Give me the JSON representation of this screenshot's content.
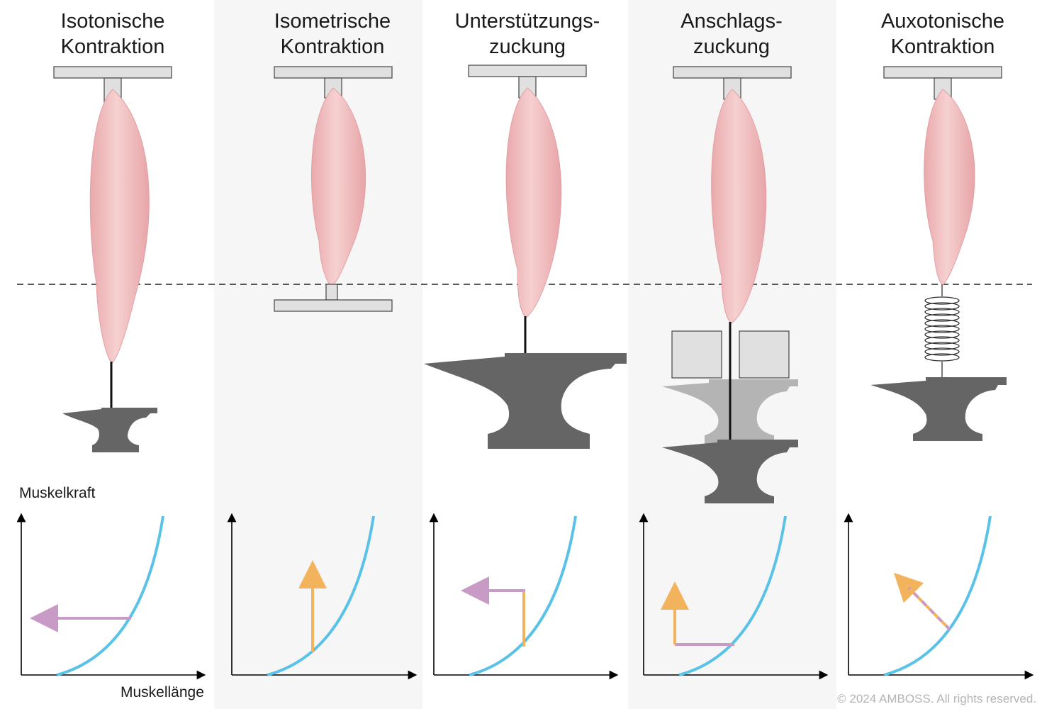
{
  "panels": [
    {
      "id": "isotonic",
      "title_line1": "Isotonische",
      "title_line2": "Kontraktion"
    },
    {
      "id": "isometric",
      "title_line1": "Isometrische",
      "title_line2": "Kontraktion"
    },
    {
      "id": "support",
      "title_line1": "Unterstützungs-",
      "title_line2": "zuckung"
    },
    {
      "id": "afterload",
      "title_line1": "Anschlags-",
      "title_line2": "zuckung"
    },
    {
      "id": "auxotonic",
      "title_line1": "Auxotonische",
      "title_line2": "Kontraktion"
    }
  ],
  "axis": {
    "y_label": "Muskelkraft",
    "x_label": "Muskellänge"
  },
  "copyright": "© 2024 AMBOSS. All rights reserved.",
  "colors": {
    "muscle": "#f0bfc0",
    "muscle_shade": "#dd9a9e",
    "anvil": "#656565",
    "anvil_light": "#b4b4b4",
    "box": "#e0e0e0",
    "curve": "#5bc2e7",
    "arrow_length": "#c89bc6",
    "arrow_force": "#f3b35d",
    "background_band": "#f6f6f6"
  }
}
